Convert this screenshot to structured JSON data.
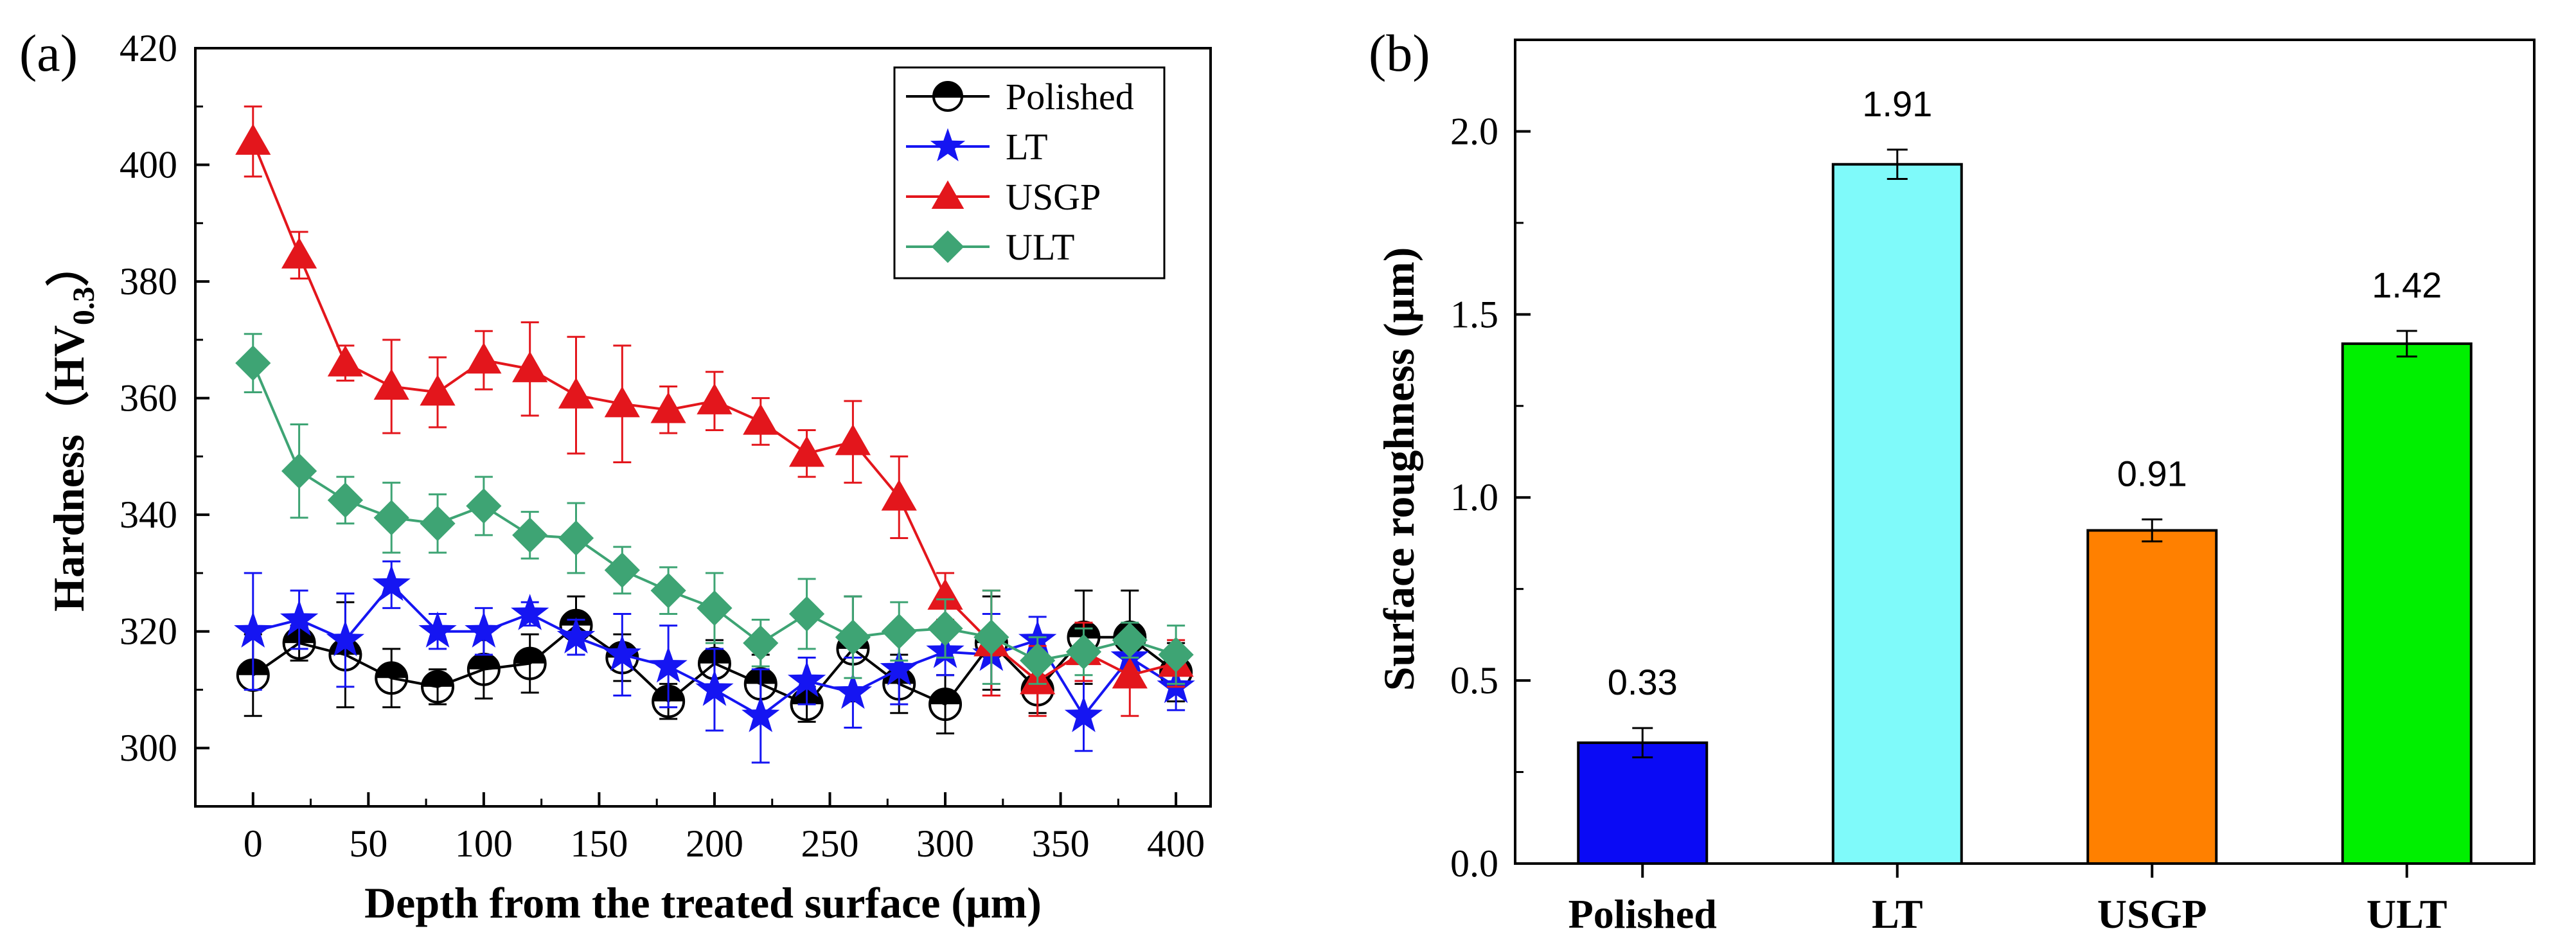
{
  "chart_data": [
    {
      "panel_label": "(a)",
      "type": "line",
      "title": "",
      "xlabel": "Depth from the treated surface (μm)",
      "ylabel_main": "Hardness（HV",
      "ylabel_sub": "0.3",
      "ylabel_end": "）",
      "xlim": [
        -25,
        415
      ],
      "ylim": [
        290,
        420
      ],
      "x_ticks": [
        0,
        50,
        100,
        150,
        200,
        250,
        300,
        350,
        400
      ],
      "x_tick_labels": [
        "0",
        "50",
        "100",
        "150",
        "200",
        "250",
        "300",
        "350",
        "400"
      ],
      "y_ticks": [
        300,
        320,
        340,
        360,
        380,
        400,
        420
      ],
      "y_tick_labels": [
        "300",
        "320",
        "340",
        "360",
        "380",
        "400",
        "420"
      ],
      "x": [
        0,
        20,
        40,
        60,
        80,
        100,
        120,
        140,
        160,
        180,
        200,
        220,
        240,
        260,
        280,
        300,
        320,
        340,
        360,
        380,
        400
      ],
      "series": [
        {
          "name": "Polished",
          "color": "#000000",
          "marker": "half-circle",
          "values": [
            312.5,
            318,
            316,
            312,
            310.5,
            313.5,
            314.5,
            321,
            315.5,
            308,
            314.5,
            311,
            307.5,
            317,
            311,
            307.5,
            318,
            310,
            319,
            319,
            313
          ],
          "errors": [
            7,
            3,
            9,
            5,
            3,
            5,
            5,
            5,
            4,
            3,
            4,
            5,
            3,
            9,
            5,
            5,
            8,
            4,
            8,
            8,
            5
          ]
        },
        {
          "name": "LT",
          "color": "#1515f2",
          "marker": "star",
          "values": [
            320,
            322,
            318.5,
            328,
            320,
            320,
            323,
            319,
            316,
            314,
            310,
            305.5,
            311.5,
            309.5,
            313.5,
            316.5,
            316,
            318.5,
            305.5,
            315.5,
            310.5
          ],
          "errors": [
            10,
            5,
            8,
            4,
            3,
            4,
            2,
            3,
            7,
            7,
            7,
            8,
            4,
            6,
            6,
            4,
            7,
            4,
            6,
            4,
            4
          ]
        },
        {
          "name": "USGP",
          "color": "#e3161c",
          "marker": "triangle",
          "values": [
            404,
            384.5,
            366,
            362,
            361,
            366.5,
            365,
            360.5,
            359,
            358,
            359.5,
            356,
            350.5,
            352.5,
            343,
            326,
            318,
            311.5,
            316.5,
            312.5,
            314.5
          ],
          "errors": [
            6,
            4,
            3,
            8,
            6,
            5,
            8,
            10,
            10,
            4,
            5,
            4,
            4,
            7,
            7,
            4,
            9,
            6,
            5,
            7,
            4
          ]
        },
        {
          "name": "ULT",
          "color": "#3ea474",
          "marker": "diamond",
          "values": [
            366,
            347.5,
            342.5,
            339.5,
            338.5,
            341.5,
            336.5,
            336,
            330.5,
            327,
            324,
            318,
            323,
            319,
            320,
            320.5,
            319,
            315,
            316.5,
            318.5,
            316
          ],
          "errors": [
            5,
            8,
            4,
            6,
            5,
            5,
            4,
            6,
            4,
            4,
            6,
            4,
            6,
            7,
            5,
            5,
            8,
            4,
            4,
            3,
            5
          ]
        }
      ],
      "legend": {
        "position": "top-right",
        "entries": [
          "Polished",
          "LT",
          "USGP",
          "ULT"
        ]
      }
    },
    {
      "panel_label": "(b)",
      "type": "bar",
      "title": "",
      "xlabel": "",
      "ylabel": "Surface roughness (μm)",
      "ylim": [
        0,
        2.25
      ],
      "y_ticks": [
        0.0,
        0.5,
        1.0,
        1.5,
        2.0
      ],
      "y_tick_labels": [
        "0.0",
        "0.5",
        "1.0",
        "1.5",
        "2.0"
      ],
      "categories": [
        "Polished",
        "LT",
        "USGP",
        "ULT"
      ],
      "values": [
        0.33,
        1.91,
        0.91,
        1.42
      ],
      "value_labels": [
        "0.33",
        "1.91",
        "0.91",
        "1.42"
      ],
      "errors": [
        0.04,
        0.04,
        0.03,
        0.035
      ],
      "colors": [
        "#0a0af5",
        "#7ffafa",
        "#ff8000",
        "#00f000"
      ]
    }
  ]
}
